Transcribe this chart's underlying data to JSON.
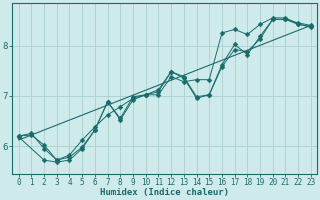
{
  "title": "",
  "xlabel": "Humidex (Indice chaleur)",
  "ylabel": "",
  "bg_color": "#ceeaea",
  "grid_color": "#aacfcf",
  "line_color": "#1a6b6b",
  "xlim": [
    -0.5,
    23.5
  ],
  "ylim": [
    5.45,
    8.85
  ],
  "yticks": [
    6,
    7,
    8
  ],
  "xticks": [
    0,
    1,
    2,
    3,
    4,
    5,
    6,
    7,
    8,
    9,
    10,
    11,
    12,
    13,
    14,
    15,
    16,
    17,
    18,
    19,
    20,
    21,
    22,
    23
  ],
  "series1_x": [
    0,
    1,
    2,
    3,
    4,
    5,
    6,
    7,
    8,
    9,
    10,
    11,
    12,
    13,
    14,
    15,
    16,
    17,
    18,
    19,
    20,
    21,
    22,
    23
  ],
  "series1_y": [
    6.2,
    6.25,
    5.95,
    5.72,
    5.82,
    6.12,
    6.38,
    6.62,
    6.78,
    6.95,
    7.02,
    7.08,
    7.48,
    7.35,
    6.95,
    7.02,
    7.58,
    7.92,
    7.88,
    8.13,
    8.52,
    8.52,
    8.42,
    8.38
  ],
  "series2_x": [
    0,
    2,
    3,
    4,
    5,
    6,
    7,
    8,
    9,
    10,
    11,
    12,
    13,
    14,
    15,
    16,
    17,
    18,
    19,
    20,
    21,
    22,
    23
  ],
  "series2_y": [
    6.18,
    5.72,
    5.68,
    5.72,
    5.95,
    6.32,
    6.88,
    6.52,
    6.92,
    7.02,
    7.02,
    7.38,
    7.28,
    7.32,
    7.32,
    8.25,
    8.32,
    8.22,
    8.42,
    8.55,
    8.55,
    8.43,
    8.36
  ],
  "series3_x": [
    0,
    1,
    2,
    3,
    4,
    5,
    6,
    7,
    8,
    9,
    10,
    11,
    12,
    13,
    14,
    15,
    16,
    17,
    18,
    19,
    20,
    21,
    22,
    23
  ],
  "series3_y": [
    6.2,
    6.22,
    6.02,
    5.72,
    5.78,
    5.98,
    6.32,
    6.88,
    6.55,
    6.98,
    7.02,
    7.12,
    7.48,
    7.38,
    6.98,
    7.02,
    7.62,
    8.02,
    7.82,
    8.18,
    8.52,
    8.52,
    8.45,
    8.4
  ],
  "trend_x": [
    0,
    23
  ],
  "trend_y": [
    6.12,
    8.4
  ],
  "marker": "D",
  "markersize": 2.5,
  "tick_fontsize": 5.5,
  "xlabel_fontsize": 6.5
}
